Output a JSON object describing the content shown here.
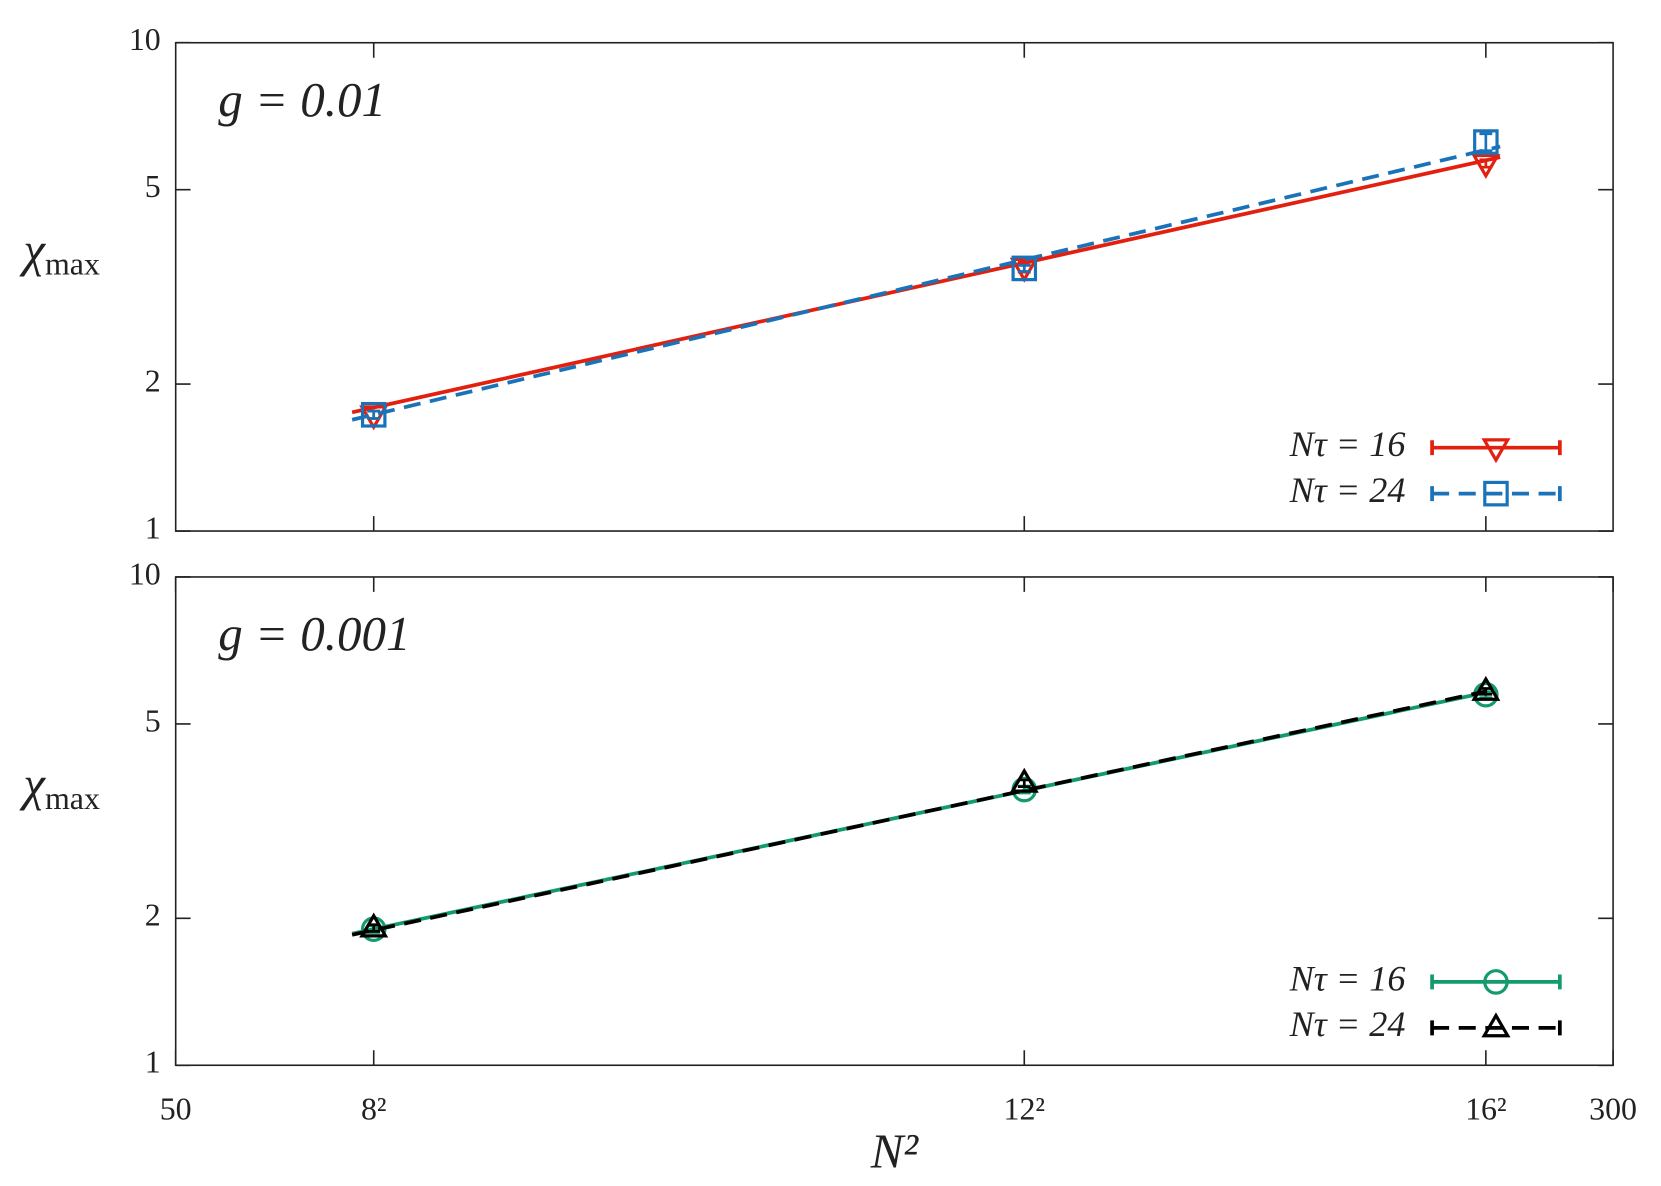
{
  "chart_data": [
    {
      "type": "line",
      "annotation": "g = 0.01",
      "ylabel": {
        "symbol": "χ",
        "subscript": "max"
      },
      "log_x": true,
      "log_y": true,
      "legend": "lower right",
      "x": [
        64,
        144,
        256
      ],
      "xlim": [
        50,
        300
      ],
      "xticks": [
        64,
        144,
        256
      ],
      "ylim": [
        1,
        10
      ],
      "yticks": [
        1,
        2,
        5,
        10
      ],
      "series": [
        {
          "name": "Nτ = 16",
          "color": "#e3200f",
          "marker": "triangle-down",
          "dash": false,
          "values": [
            1.73,
            3.47,
            5.66
          ],
          "errors": [
            0.03,
            0.08,
            0.1
          ],
          "fit": {
            "x": [
              62.3,
              260.6
            ],
            "values": [
              1.75,
              5.83
            ]
          }
        },
        {
          "name": "Nτ = 24",
          "color": "#1a72b8",
          "marker": "square",
          "dash": true,
          "values": [
            1.73,
            3.45,
            6.26
          ],
          "errors": [
            0.03,
            0.05,
            0.25
          ],
          "fit": {
            "x": [
              62.3,
              260.6
            ],
            "values": [
              1.69,
              6.13
            ]
          }
        }
      ]
    },
    {
      "type": "line",
      "annotation": "g = 0.001",
      "ylabel": {
        "symbol": "χ",
        "subscript": "max"
      },
      "xlabel": "N²",
      "log_x": true,
      "log_y": true,
      "legend": "lower right",
      "x": [
        64,
        144,
        256
      ],
      "xlim": [
        50,
        300
      ],
      "xticks": [
        50,
        {
          "value": 64,
          "label": "8²"
        },
        {
          "value": 144,
          "label": "12²"
        },
        {
          "value": 256,
          "label": "16²"
        },
        300
      ],
      "ylim": [
        1,
        10
      ],
      "yticks": [
        1,
        2,
        5,
        10
      ],
      "series": [
        {
          "name": "Nτ = 16",
          "color": "#139a6e",
          "marker": "circle",
          "dash": false,
          "values": [
            1.9,
            3.67,
            5.74
          ],
          "errors": [
            0.03,
            0.06,
            0.08
          ],
          "fit": {
            "x": [
              62.3,
              256
            ],
            "values": [
              1.86,
              5.8
            ]
          }
        },
        {
          "name": "Nτ = 24",
          "color": "#000000",
          "marker": "triangle-up",
          "dash": true,
          "values": [
            1.91,
            3.78,
            5.83
          ],
          "errors": [
            0.03,
            0.06,
            0.08
          ],
          "fit": {
            "x": [
              62.3,
              256
            ],
            "values": [
              1.85,
              5.83
            ]
          }
        }
      ]
    }
  ]
}
